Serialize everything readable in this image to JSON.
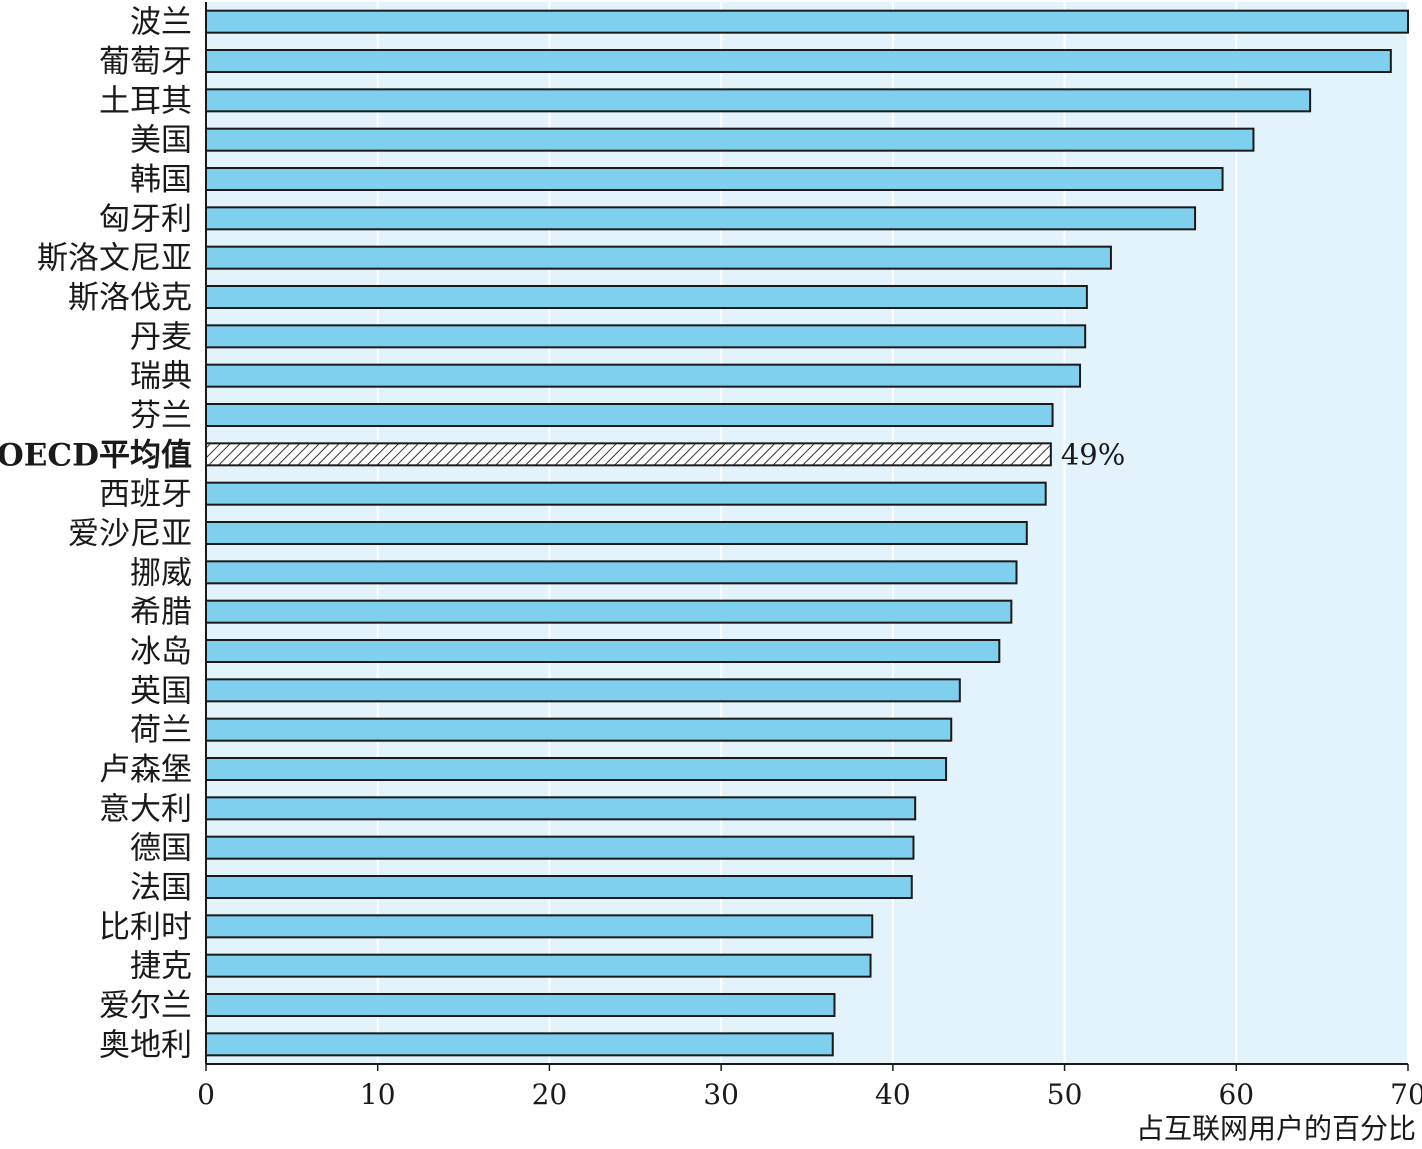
{
  "chart_data": {
    "type": "bar",
    "orientation": "horizontal",
    "categories": [
      "波兰",
      "葡萄牙",
      "土耳其",
      "美国",
      "韩国",
      "匈牙利",
      "斯洛文尼亚",
      "斯洛伐克",
      "丹麦",
      "瑞典",
      "芬兰",
      "OECD平均值",
      "西班牙",
      "爱沙尼亚",
      "挪威",
      "希腊",
      "冰岛",
      "英国",
      "荷兰",
      "卢森堡",
      "意大利",
      "德国",
      "法国",
      "比利时",
      "捷克",
      "爱尔兰",
      "奥地利"
    ],
    "values": [
      70,
      69,
      64.3,
      61,
      59.2,
      57.6,
      52.7,
      51.3,
      51.2,
      50.9,
      49.3,
      49.2,
      48.9,
      47.8,
      47.2,
      46.9,
      46.2,
      43.9,
      43.4,
      43.1,
      41.3,
      41.2,
      41.1,
      38.8,
      38.7,
      36.6,
      36.5
    ],
    "highlight_index": 11,
    "highlight_label": "49%",
    "xlim": [
      0,
      70
    ],
    "xticks": [
      "0",
      "10",
      "20",
      "30",
      "40",
      "50",
      "60",
      "70"
    ],
    "xlabel": "占互联网用户的百分比",
    "ylabel": "",
    "title": "",
    "grid": "vertical",
    "colors": {
      "bar": "#7fcfef",
      "bar_stroke": "#1a1a1a",
      "plot_bg": "#e3f3fb",
      "grid": "#ffffff",
      "highlight_fill": "#ffffff",
      "highlight_hatch": "#333333"
    }
  }
}
